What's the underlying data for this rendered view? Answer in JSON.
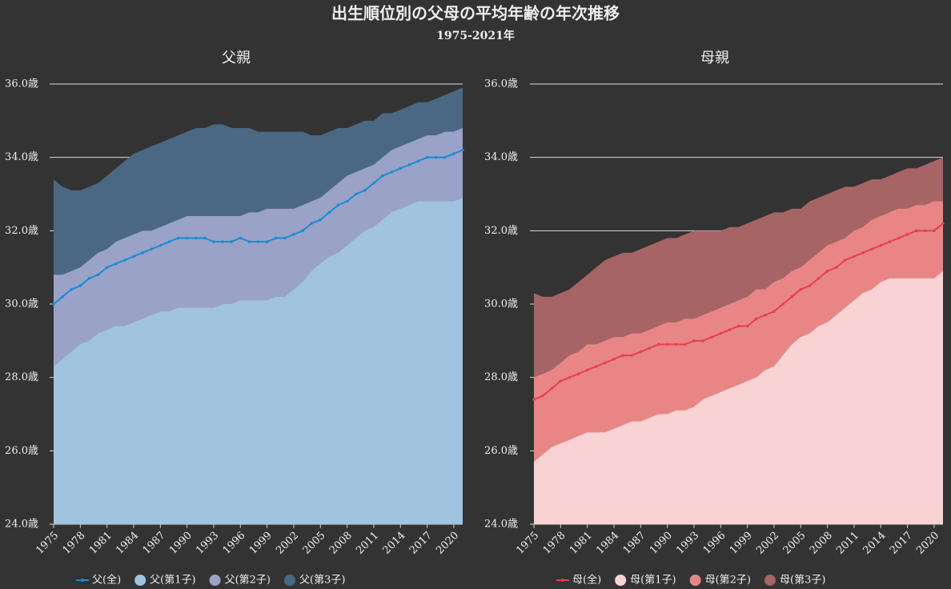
{
  "title": "出生順位別の父母の平均年齢の年次推移",
  "subtitle": "1975-2021年",
  "chart_data": [
    {
      "type": "area",
      "title": "父親",
      "x": [
        1975,
        1976,
        1977,
        1978,
        1979,
        1980,
        1981,
        1982,
        1983,
        1984,
        1985,
        1986,
        1987,
        1988,
        1989,
        1990,
        1991,
        1992,
        1993,
        1994,
        1995,
        1996,
        1997,
        1998,
        1999,
        2000,
        2001,
        2002,
        2003,
        2004,
        2005,
        2006,
        2007,
        2008,
        2009,
        2010,
        2011,
        2012,
        2013,
        2014,
        2015,
        2016,
        2017,
        2018,
        2019,
        2020,
        2021
      ],
      "xlim": [
        1975,
        2021
      ],
      "xticks": [
        1975,
        1978,
        1981,
        1984,
        1987,
        1990,
        1993,
        1996,
        1999,
        2002,
        2005,
        2008,
        2011,
        2014,
        2017,
        2020
      ],
      "ylim": [
        24,
        36
      ],
      "yticks": [
        {
          "value": 24,
          "label": "24.0歳"
        },
        {
          "value": 26,
          "label": "26.0歳"
        },
        {
          "value": 28,
          "label": "28.0歳"
        },
        {
          "value": 30,
          "label": "30.0歳"
        },
        {
          "value": 32,
          "label": "32.0歳"
        },
        {
          "value": 34,
          "label": "34.0歳"
        },
        {
          "value": 36,
          "label": "36.0歳"
        }
      ],
      "grid": true,
      "series": [
        {
          "name": "父(全)",
          "kind": "line",
          "color": "#1b8dd2",
          "values": [
            30.0,
            30.2,
            30.4,
            30.5,
            30.7,
            30.8,
            31.0,
            31.1,
            31.2,
            31.3,
            31.4,
            31.5,
            31.6,
            31.7,
            31.8,
            31.8,
            31.8,
            31.8,
            31.7,
            31.7,
            31.7,
            31.8,
            31.7,
            31.7,
            31.7,
            31.8,
            31.8,
            31.9,
            32.0,
            32.2,
            32.3,
            32.5,
            32.7,
            32.8,
            33.0,
            33.1,
            33.3,
            33.5,
            33.6,
            33.7,
            33.8,
            33.9,
            34.0,
            34.0,
            34.0,
            34.1,
            34.2
          ]
        },
        {
          "name": "父(第1子)",
          "kind": "area",
          "color": "#a0c3e0",
          "values": [
            28.3,
            28.5,
            28.7,
            28.9,
            29.0,
            29.2,
            29.3,
            29.4,
            29.4,
            29.5,
            29.6,
            29.7,
            29.8,
            29.8,
            29.9,
            29.9,
            29.9,
            29.9,
            29.9,
            30.0,
            30.0,
            30.1,
            30.1,
            30.1,
            30.1,
            30.2,
            30.2,
            30.4,
            30.6,
            30.9,
            31.1,
            31.3,
            31.4,
            31.6,
            31.8,
            32.0,
            32.1,
            32.3,
            32.5,
            32.6,
            32.7,
            32.8,
            32.8,
            32.8,
            32.8,
            32.8,
            32.9
          ]
        },
        {
          "name": "父(第2子)",
          "kind": "area",
          "color": "#9aa2c8",
          "values": [
            30.8,
            30.8,
            30.9,
            31.0,
            31.2,
            31.4,
            31.5,
            31.7,
            31.8,
            31.9,
            32.0,
            32.0,
            32.1,
            32.2,
            32.3,
            32.4,
            32.4,
            32.4,
            32.4,
            32.4,
            32.4,
            32.4,
            32.5,
            32.5,
            32.6,
            32.6,
            32.6,
            32.6,
            32.7,
            32.8,
            32.9,
            33.1,
            33.3,
            33.5,
            33.6,
            33.7,
            33.8,
            34.0,
            34.2,
            34.3,
            34.4,
            34.5,
            34.6,
            34.6,
            34.7,
            34.7,
            34.8
          ]
        },
        {
          "name": "父(第3子)",
          "kind": "area",
          "color": "#4a6883",
          "values": [
            33.4,
            33.2,
            33.1,
            33.1,
            33.2,
            33.3,
            33.5,
            33.7,
            33.9,
            34.1,
            34.2,
            34.3,
            34.4,
            34.5,
            34.6,
            34.7,
            34.8,
            34.8,
            34.9,
            34.9,
            34.8,
            34.8,
            34.8,
            34.7,
            34.7,
            34.7,
            34.7,
            34.7,
            34.7,
            34.6,
            34.6,
            34.7,
            34.8,
            34.8,
            34.9,
            35.0,
            35.0,
            35.2,
            35.2,
            35.3,
            35.4,
            35.5,
            35.5,
            35.6,
            35.7,
            35.8,
            35.9
          ]
        }
      ]
    },
    {
      "type": "area",
      "title": "母親",
      "x": [
        1975,
        1976,
        1977,
        1978,
        1979,
        1980,
        1981,
        1982,
        1983,
        1984,
        1985,
        1986,
        1987,
        1988,
        1989,
        1990,
        1991,
        1992,
        1993,
        1994,
        1995,
        1996,
        1997,
        1998,
        1999,
        2000,
        2001,
        2002,
        2003,
        2004,
        2005,
        2006,
        2007,
        2008,
        2009,
        2010,
        2011,
        2012,
        2013,
        2014,
        2015,
        2016,
        2017,
        2018,
        2019,
        2020,
        2021
      ],
      "xlim": [
        1975,
        2021
      ],
      "xticks": [
        1975,
        1978,
        1981,
        1984,
        1987,
        1990,
        1993,
        1996,
        1999,
        2002,
        2005,
        2008,
        2011,
        2014,
        2017,
        2020
      ],
      "ylim": [
        24,
        36
      ],
      "yticks": [
        {
          "value": 24,
          "label": "24.0歳"
        },
        {
          "value": 26,
          "label": "26.0歳"
        },
        {
          "value": 28,
          "label": "28.0歳"
        },
        {
          "value": 30,
          "label": "30.0歳"
        },
        {
          "value": 32,
          "label": "32.0歳"
        },
        {
          "value": 34,
          "label": "34.0歳"
        },
        {
          "value": 36,
          "label": "36.0歳"
        }
      ],
      "grid": true,
      "series": [
        {
          "name": "母(全)",
          "kind": "line",
          "color": "#e8404a",
          "values": [
            27.4,
            27.5,
            27.7,
            27.9,
            28.0,
            28.1,
            28.2,
            28.3,
            28.4,
            28.5,
            28.6,
            28.6,
            28.7,
            28.8,
            28.9,
            28.9,
            28.9,
            28.9,
            29.0,
            29.0,
            29.1,
            29.2,
            29.3,
            29.4,
            29.4,
            29.6,
            29.7,
            29.8,
            30.0,
            30.2,
            30.4,
            30.5,
            30.7,
            30.9,
            31.0,
            31.2,
            31.3,
            31.4,
            31.5,
            31.6,
            31.7,
            31.8,
            31.9,
            32.0,
            32.0,
            32.0,
            32.2
          ]
        },
        {
          "name": "母(第1子)",
          "kind": "area",
          "color": "#f9d3d3",
          "values": [
            25.7,
            25.9,
            26.1,
            26.2,
            26.3,
            26.4,
            26.5,
            26.5,
            26.5,
            26.6,
            26.7,
            26.8,
            26.8,
            26.9,
            27.0,
            27.0,
            27.1,
            27.1,
            27.2,
            27.4,
            27.5,
            27.6,
            27.7,
            27.8,
            27.9,
            28.0,
            28.2,
            28.3,
            28.6,
            28.9,
            29.1,
            29.2,
            29.4,
            29.5,
            29.7,
            29.9,
            30.1,
            30.3,
            30.4,
            30.6,
            30.7,
            30.7,
            30.7,
            30.7,
            30.7,
            30.7,
            30.9
          ]
        },
        {
          "name": "母(第2子)",
          "kind": "area",
          "color": "#e88686",
          "values": [
            28.0,
            28.1,
            28.2,
            28.4,
            28.6,
            28.7,
            28.9,
            28.9,
            29.0,
            29.1,
            29.1,
            29.2,
            29.2,
            29.3,
            29.4,
            29.5,
            29.5,
            29.6,
            29.6,
            29.7,
            29.8,
            29.9,
            30.0,
            30.1,
            30.2,
            30.4,
            30.4,
            30.6,
            30.7,
            30.9,
            31.0,
            31.2,
            31.4,
            31.6,
            31.7,
            31.8,
            32.0,
            32.1,
            32.3,
            32.4,
            32.5,
            32.6,
            32.6,
            32.7,
            32.7,
            32.8,
            32.8
          ]
        },
        {
          "name": "母(第3子)",
          "kind": "area",
          "color": "#a66465",
          "values": [
            30.3,
            30.2,
            30.2,
            30.3,
            30.4,
            30.6,
            30.8,
            31.0,
            31.2,
            31.3,
            31.4,
            31.4,
            31.5,
            31.6,
            31.7,
            31.8,
            31.8,
            31.9,
            32.0,
            32.0,
            32.0,
            32.0,
            32.1,
            32.1,
            32.2,
            32.3,
            32.4,
            32.5,
            32.5,
            32.6,
            32.6,
            32.8,
            32.9,
            33.0,
            33.1,
            33.2,
            33.2,
            33.3,
            33.4,
            33.4,
            33.5,
            33.6,
            33.7,
            33.7,
            33.8,
            33.9,
            34.0
          ]
        }
      ]
    }
  ]
}
